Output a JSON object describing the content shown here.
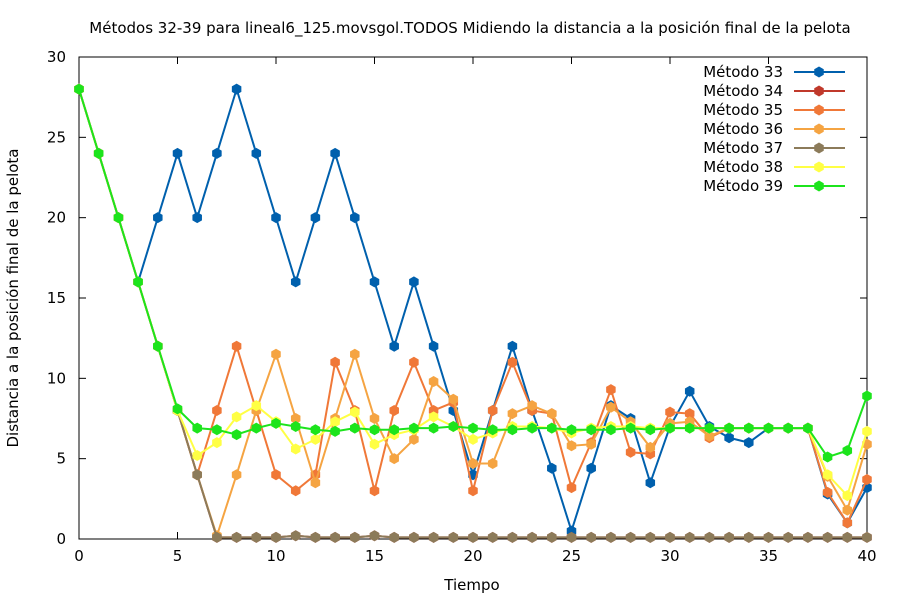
{
  "chart_data": {
    "type": "line",
    "title": "Métodos 32-39 para lineal6_125.movsgol.TODOS Midiendo la distancia a la posición final de la pelota",
    "xlabel": "Tiempo",
    "ylabel": "Distancia a la posición final de la pelota",
    "xlim": [
      0,
      40
    ],
    "ylim": [
      0,
      30
    ],
    "xticks": [
      0,
      5,
      10,
      15,
      20,
      25,
      30,
      35,
      40
    ],
    "yticks": [
      0,
      5,
      10,
      15,
      20,
      25,
      30
    ],
    "x_tick_labels": [
      "0",
      "5",
      "10",
      "15",
      "20",
      "25",
      "30",
      "35",
      "40"
    ],
    "y_tick_labels": [
      "0",
      "5",
      "10",
      "15",
      "20",
      "25",
      "30"
    ],
    "legend_position": "top-right",
    "grid": false,
    "x": [
      0,
      1,
      2,
      3,
      4,
      5,
      6,
      7,
      8,
      9,
      10,
      11,
      12,
      13,
      14,
      15,
      16,
      17,
      18,
      19,
      20,
      21,
      22,
      23,
      24,
      25,
      26,
      27,
      28,
      29,
      30,
      31,
      32,
      33,
      34,
      35,
      36,
      37,
      38,
      39,
      40
    ],
    "series": [
      {
        "name": "Método 33",
        "color": "#0060ad",
        "values": [
          28,
          24,
          20,
          16,
          20,
          24,
          20,
          24,
          28,
          24,
          20,
          16,
          20,
          24,
          20,
          16,
          12,
          16,
          12,
          8,
          4,
          8,
          12,
          8,
          4.4,
          0.5,
          4.4,
          8.3,
          7.5,
          3.5,
          7,
          9.2,
          7,
          6.3,
          6,
          6.9,
          6.9,
          6.9,
          2.8,
          1,
          3.2
        ]
      },
      {
        "name": "Método 34",
        "color": "#c0392b",
        "values": [
          28,
          24,
          20,
          16,
          12,
          8,
          4,
          0.1,
          0.1,
          0.1,
          0.1,
          0.2,
          0.1,
          0.1,
          0.1,
          0.2,
          0.1,
          0.1,
          0.1,
          0.1,
          0.1,
          0.1,
          0.1,
          0.1,
          0.1,
          0.1,
          0.1,
          0.1,
          0.1,
          0.1,
          0.1,
          0.1,
          0.1,
          0.1,
          0.1,
          0.1,
          0.1,
          0.1,
          0.1,
          0.1,
          0.1
        ]
      },
      {
        "name": "Método 35",
        "color": "#f07838",
        "values": [
          28,
          24,
          20,
          16,
          12,
          8,
          4,
          8,
          12,
          8,
          4,
          3,
          4,
          11,
          8,
          3,
          8,
          11,
          8,
          8.5,
          3,
          8,
          11,
          8,
          7.8,
          3.2,
          6,
          9.3,
          5.4,
          5.3,
          7.9,
          7.8,
          6.3,
          6.9,
          6.9,
          6.9,
          6.9,
          6.9,
          2.9,
          1,
          3.7
        ]
      },
      {
        "name": "Método 36",
        "color": "#f5a442",
        "values": [
          28,
          24,
          20,
          16,
          12,
          8,
          4,
          0.2,
          4,
          8,
          11.5,
          7.5,
          3.5,
          7.5,
          11.5,
          7.5,
          5,
          6.2,
          9.8,
          8.7,
          4.7,
          4.7,
          7.8,
          8.3,
          7.8,
          5.8,
          5.9,
          8.2,
          7.3,
          5.7,
          7.2,
          7.3,
          6.4,
          6.9,
          6.9,
          6.9,
          6.9,
          6.9,
          3.9,
          1.8,
          5.9
        ]
      },
      {
        "name": "Método 37",
        "color": "#8c7b5a",
        "values": [
          28,
          24,
          20,
          16,
          12,
          8,
          4,
          0.1,
          0.1,
          0.1,
          0.1,
          0.2,
          0.1,
          0.1,
          0.1,
          0.2,
          0.1,
          0.1,
          0.1,
          0.1,
          0.1,
          0.1,
          0.1,
          0.1,
          0.1,
          0.1,
          0.1,
          0.1,
          0.1,
          0.1,
          0.1,
          0.1,
          0.1,
          0.1,
          0.1,
          0.1,
          0.1,
          0.1,
          0.1,
          0.1,
          0.1
        ]
      },
      {
        "name": "Método 38",
        "color": "#ffff44",
        "values": [
          28,
          24,
          20,
          16,
          12,
          8,
          5.2,
          6,
          7.6,
          8.3,
          7.3,
          5.6,
          6.2,
          7.3,
          7.9,
          5.9,
          6.5,
          6.8,
          7.6,
          7,
          6.2,
          6.6,
          7,
          7,
          6.9,
          6.6,
          6.9,
          7,
          7,
          6.9,
          6.9,
          6.9,
          6.9,
          6.9,
          6.9,
          6.9,
          6.9,
          6.9,
          4,
          2.7,
          6.7
        ]
      },
      {
        "name": "Método 39",
        "color": "#1ce41c",
        "values": [
          28,
          24,
          20,
          16,
          12,
          8.1,
          6.9,
          6.8,
          6.5,
          6.9,
          7.2,
          7,
          6.8,
          6.7,
          6.9,
          6.8,
          6.8,
          6.9,
          6.9,
          7,
          6.9,
          6.8,
          6.8,
          6.9,
          6.9,
          6.8,
          6.8,
          6.8,
          6.9,
          6.8,
          6.9,
          6.9,
          6.9,
          6.9,
          6.9,
          6.9,
          6.9,
          6.9,
          5.1,
          5.5,
          8.9
        ]
      }
    ]
  }
}
